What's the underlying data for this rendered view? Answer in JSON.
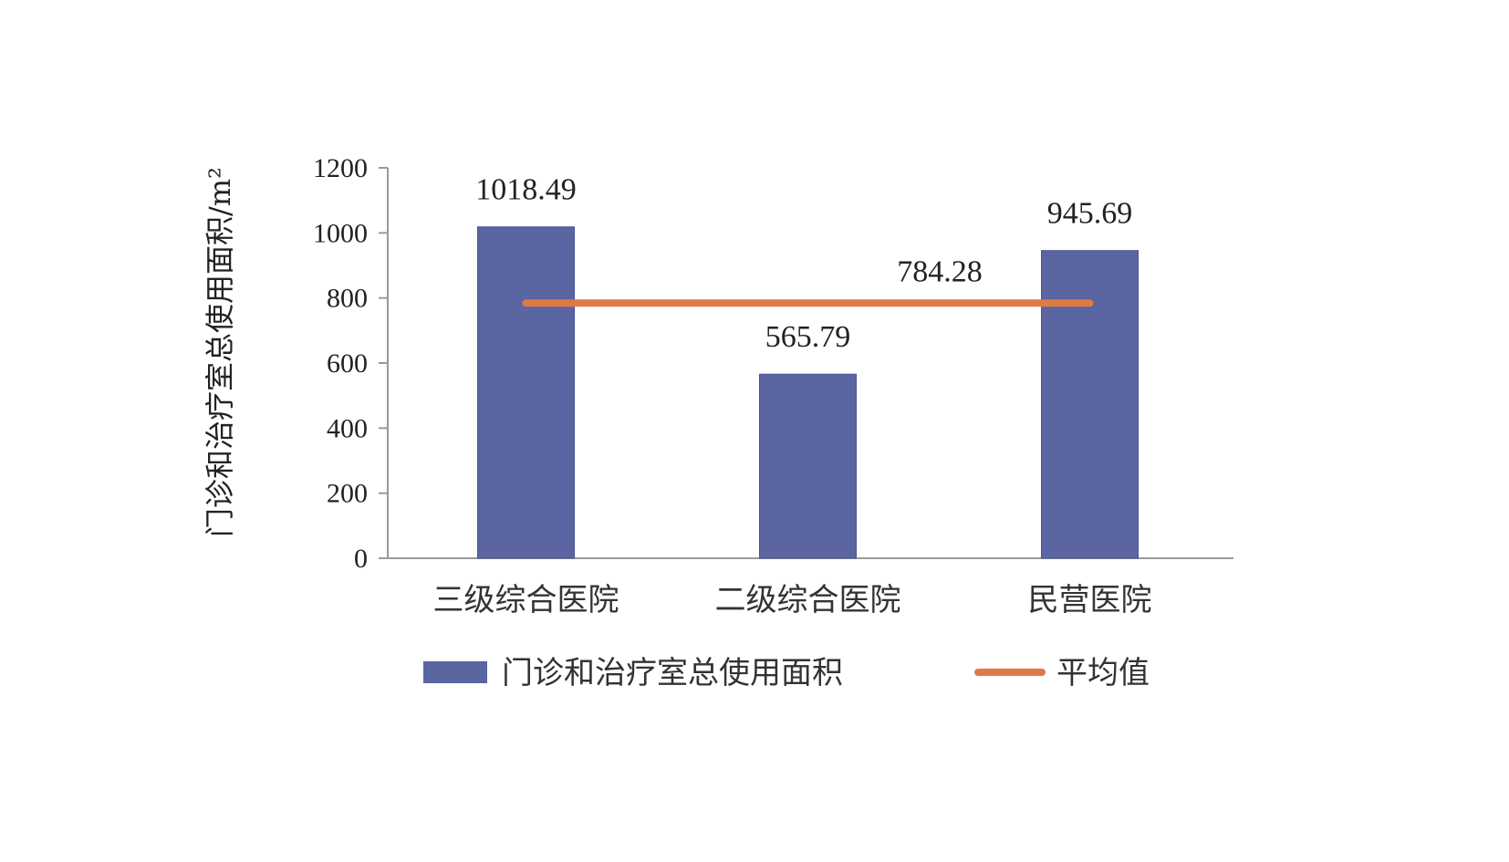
{
  "chart_data": {
    "type": "bar",
    "title": "",
    "xlabel": "",
    "ylabel": "门诊和治疗室总使用面积/m²",
    "ylim": [
      0,
      1200
    ],
    "yticks": [
      0,
      200,
      400,
      600,
      800,
      1000,
      1200
    ],
    "categories": [
      "三级综合医院",
      "二级综合医院",
      "民营医院"
    ],
    "series": [
      {
        "name": "门诊和治疗室总使用面积",
        "type": "bar",
        "values": [
          1018.49,
          565.79,
          945.69
        ],
        "labels": [
          "1018.49",
          "565.79",
          "945.69"
        ],
        "color": "#5a65a2"
      },
      {
        "name": "平均值",
        "type": "line",
        "values": [
          784.28,
          784.28,
          784.28
        ],
        "label": "784.28",
        "color": "#e07a45"
      }
    ],
    "grid": false,
    "legend_position": "bottom"
  }
}
